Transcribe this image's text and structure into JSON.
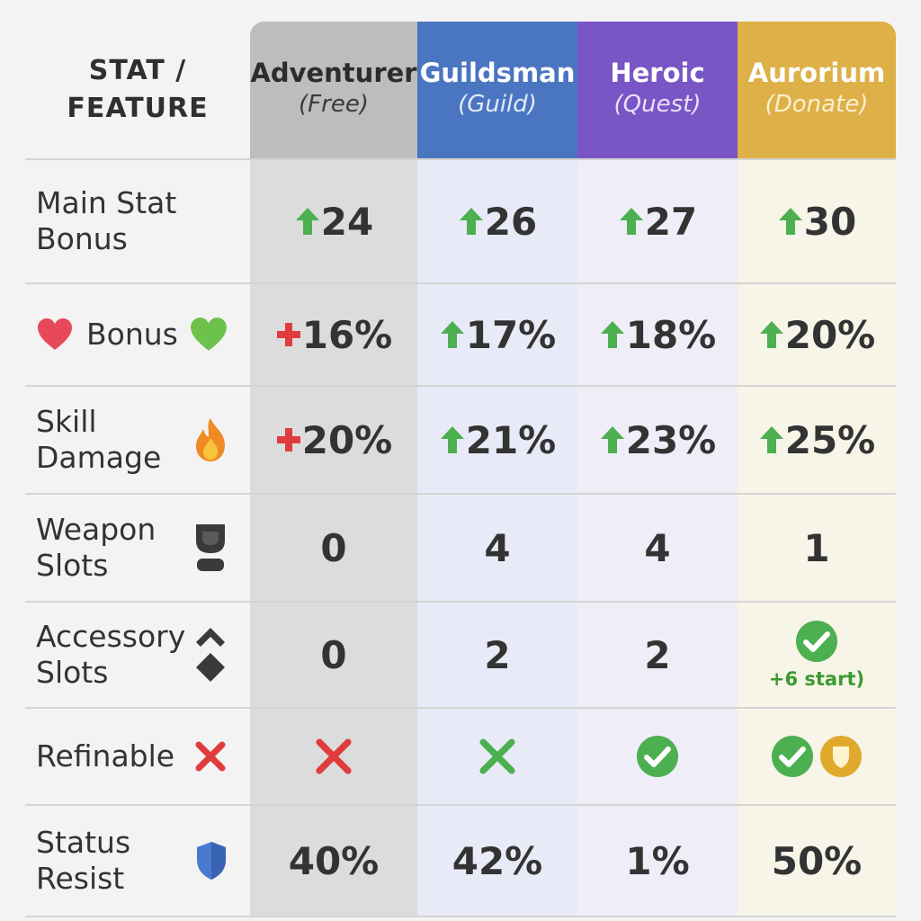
{
  "header": {
    "stat_feature": "STAT /\nFEATURE",
    "columns": [
      {
        "title": "Adventurer",
        "subtitle": "(Free)"
      },
      {
        "title": "Guildsman",
        "subtitle": "(Guild)"
      },
      {
        "title": "Heroic",
        "subtitle": "(Quest)"
      },
      {
        "title": "Aurorium",
        "subtitle": "(Donate)"
      }
    ]
  },
  "rows": [
    {
      "label": "Main Stat\nBonus",
      "values": [
        "24",
        "26",
        "27",
        "30"
      ],
      "indicators": [
        "up",
        "up",
        "up",
        "up"
      ]
    },
    {
      "label": "Bonus",
      "values": [
        "16%",
        "17%",
        "18%",
        "20%"
      ],
      "indicators": [
        "plus-red",
        "up",
        "up",
        "up"
      ]
    },
    {
      "label": "Skill\nDamage",
      "values": [
        "20%",
        "21%",
        "23%",
        "25%"
      ],
      "indicators": [
        "plus-red",
        "up",
        "up",
        "up"
      ]
    },
    {
      "label": "Weapon\nSlots",
      "values": [
        "0",
        "4",
        "4",
        "1"
      ]
    },
    {
      "label": "Accessory\nSlots",
      "values": [
        "0",
        "2",
        "2",
        ""
      ],
      "aurorium_note": "+6 start)"
    },
    {
      "label": "Refinable",
      "values": [
        "",
        "",
        "",
        ""
      ],
      "marks": [
        "cross-red",
        "cross-green",
        "check",
        "check+shield"
      ]
    },
    {
      "label": "Status\nResist",
      "values": [
        "40%",
        "42%",
        "1%",
        "50%"
      ]
    }
  ],
  "icons": {
    "heart_left": "heart-icon",
    "heart_right": "green-heart-icon",
    "skill": "fire-icon",
    "weapon": "weapon-slot-icon",
    "accessory": "diamond-icon",
    "refinable": "x-icon",
    "status": "shield-icon"
  },
  "colors": {
    "adventurer": "#bdbdbd",
    "guildsman": "#4a75c0",
    "heroic": "#7a55c5",
    "aurorium": "#ddb048",
    "up_arrow": "#4caf50",
    "red_plus": "#e03c3c"
  }
}
